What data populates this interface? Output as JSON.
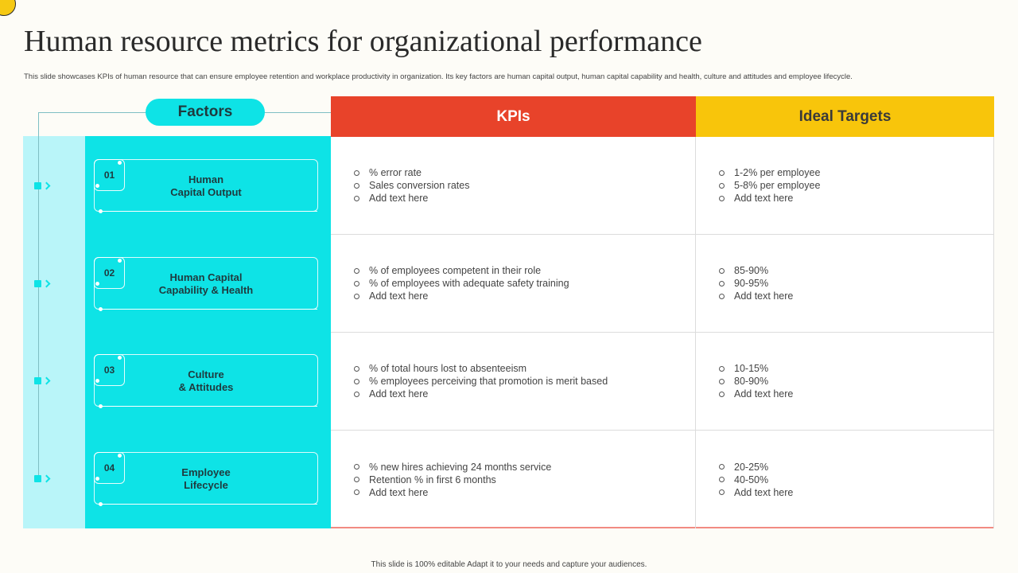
{
  "title": "Human resource metrics for organizational performance",
  "subtitle": "This slide showcases KPIs of human resource that can ensure employee retention and workplace productivity in organization. Its key factors are human capital output, human capital capability and health, culture and attitudes and employee lifecycle.",
  "headers": {
    "factors": "Factors",
    "kpis": "KPIs",
    "targets": "Ideal Targets"
  },
  "colors": {
    "cyan": "#0ee3e6",
    "pale_cyan": "#b9f5f9",
    "kpi_header": "#e8432a",
    "target_header": "#f8c50b"
  },
  "rows": [
    {
      "number": "01",
      "factor": "Human\nCapital Output",
      "kpis": [
        "% error rate",
        "Sales conversion rates",
        "Add text here"
      ],
      "targets": [
        "1-2% per employee",
        "5-8% per employee",
        "Add text here"
      ]
    },
    {
      "number": "02",
      "factor": "Human Capital\nCapability & Health",
      "kpis": [
        "% of employees competent in their role",
        "% of employees with adequate safety training",
        "Add text here"
      ],
      "targets": [
        "85-90%",
        "90-95%",
        "Add text here"
      ]
    },
    {
      "number": "03",
      "factor": "Culture\n& Attitudes",
      "kpis": [
        "% of total hours lost to absenteeism",
        "% employees perceiving that promotion is merit based",
        "Add text here"
      ],
      "targets": [
        "10-15%",
        "80-90%",
        "Add text here"
      ]
    },
    {
      "number": "04",
      "factor": "Employee\nLifecycle",
      "kpis": [
        "% new hires achieving 24 months service",
        "Retention % in first 6 months",
        "Add text here"
      ],
      "targets": [
        "20-25%",
        "40-50%",
        "Add text here"
      ]
    }
  ],
  "footer": "This slide is 100% editable Adapt it to your needs and capture your audiences."
}
